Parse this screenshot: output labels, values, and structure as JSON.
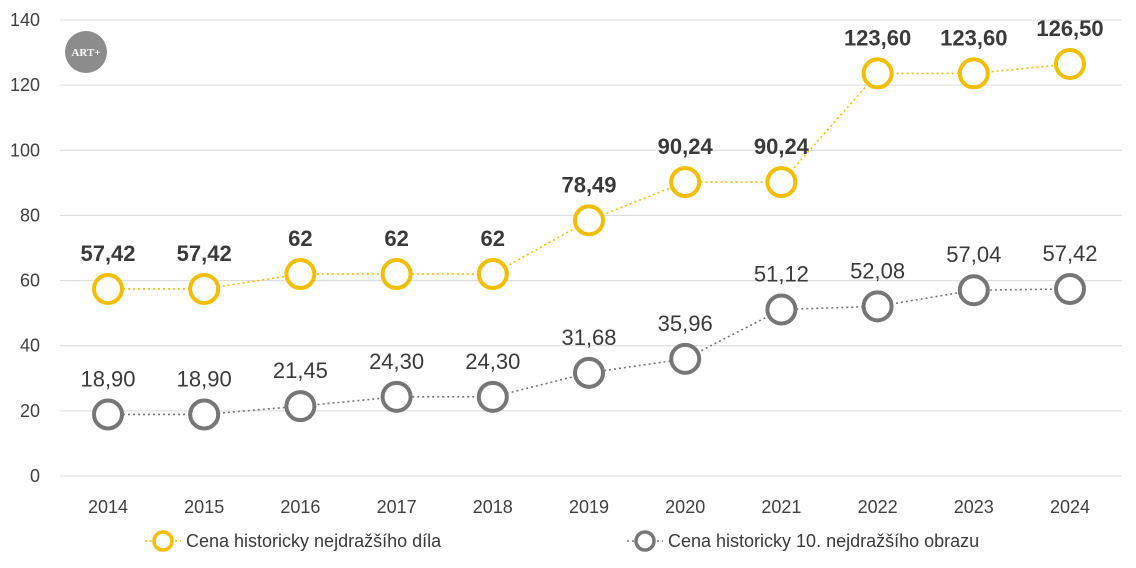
{
  "logo": {
    "text": "ART+",
    "color": "#8c8c8c"
  },
  "chart_data": {
    "type": "line",
    "title": "",
    "xlabel": "",
    "ylabel": "",
    "ylim": [
      0,
      140
    ],
    "yticks": [
      0,
      20,
      40,
      60,
      80,
      100,
      120,
      140
    ],
    "ytick_labels": [
      "0",
      "20",
      "40",
      "60",
      "80",
      "100",
      "120",
      "140"
    ],
    "grid": true,
    "legend_position": "bottom",
    "categories": [
      "2014",
      "2015",
      "2016",
      "2017",
      "2018",
      "2019",
      "2020",
      "2021",
      "2022",
      "2023",
      "2024"
    ],
    "series": [
      {
        "name": "Cena historicky nejdražšího díla",
        "color": "#f2be00",
        "values": [
          57.42,
          57.42,
          62,
          62,
          62,
          78.49,
          90.24,
          90.24,
          123.6,
          123.6,
          126.5
        ],
        "labels": [
          "57,42",
          "57,42",
          "62",
          "62",
          "62",
          "78,49",
          "90,24",
          "90,24",
          "123,60",
          "123,60",
          "126,50"
        ]
      },
      {
        "name": "Cena historicky 10. nejdražšího obrazu",
        "color": "#767676",
        "values": [
          18.9,
          18.9,
          21.45,
          24.3,
          24.3,
          31.68,
          35.96,
          51.12,
          52.08,
          57.04,
          57.42
        ],
        "labels": [
          "18,90",
          "18,90",
          "21,45",
          "24,30",
          "24,30",
          "31,68",
          "35,96",
          "51,12",
          "52,08",
          "57,04",
          "57,42"
        ]
      }
    ]
  }
}
